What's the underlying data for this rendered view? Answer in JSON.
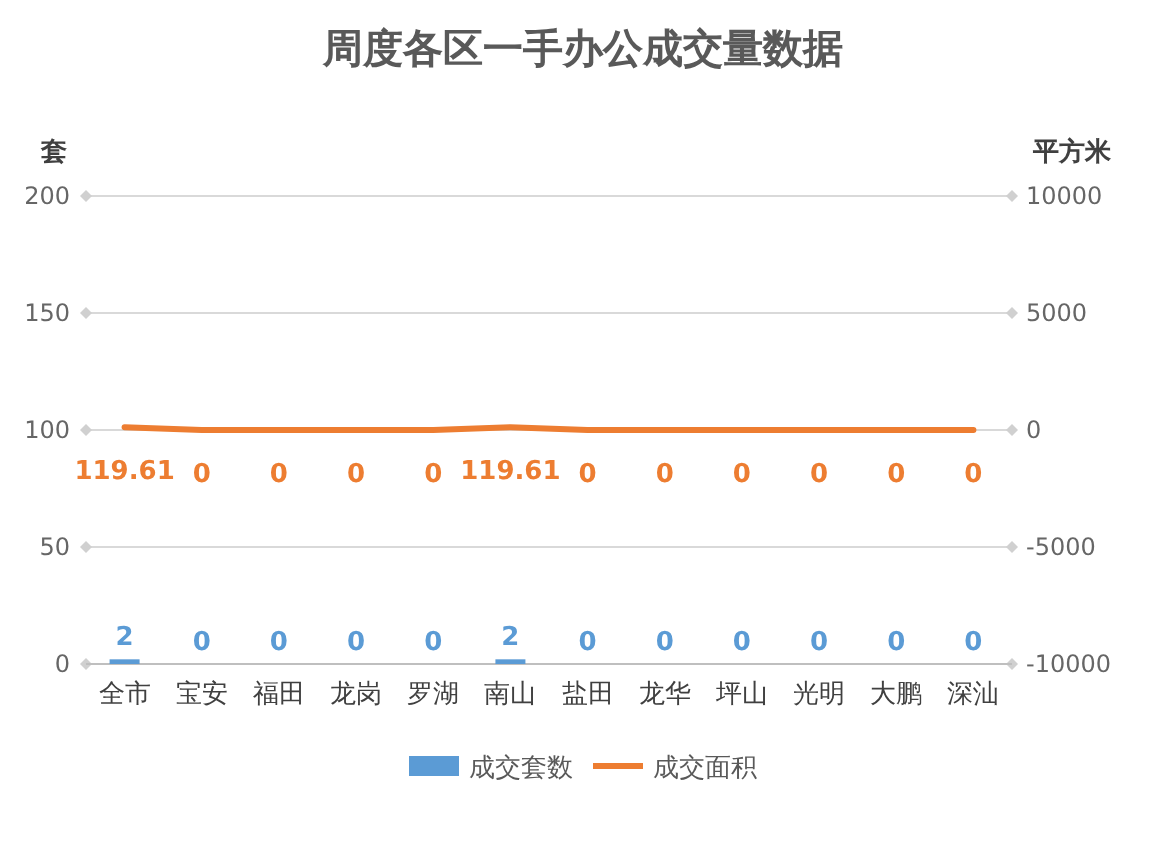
{
  "chart_data": {
    "type": "bar",
    "title": "周度各区一手办公成交量数据",
    "ylabel": "套",
    "y2label": "平方米",
    "categories": [
      "全市",
      "宝安",
      "福田",
      "龙岗",
      "罗湖",
      "南山",
      "盐田",
      "龙华",
      "坪山",
      "光明",
      "大鹏",
      "深汕"
    ],
    "series": [
      {
        "name": "成交套数",
        "type": "bar",
        "color": "#5b9bd5",
        "values": [
          2,
          0,
          0,
          0,
          0,
          2,
          0,
          0,
          0,
          0,
          0,
          0
        ]
      },
      {
        "name": "成交面积",
        "type": "line",
        "axis": "y2",
        "color": "#ed7d31",
        "values": [
          119.61,
          0,
          0,
          0,
          0,
          119.61,
          0,
          0,
          0,
          0,
          0,
          0
        ]
      }
    ],
    "ylim": [
      0,
      200
    ],
    "yticks": [
      0,
      50,
      100,
      150,
      200
    ],
    "y2lim": [
      -10000,
      10000
    ],
    "y2ticks": [
      -10000,
      -5000,
      0,
      5000,
      10000
    ],
    "grid": "y",
    "legend": "bottom",
    "data_labels": true,
    "marker": "none",
    "line_style": "solid"
  }
}
